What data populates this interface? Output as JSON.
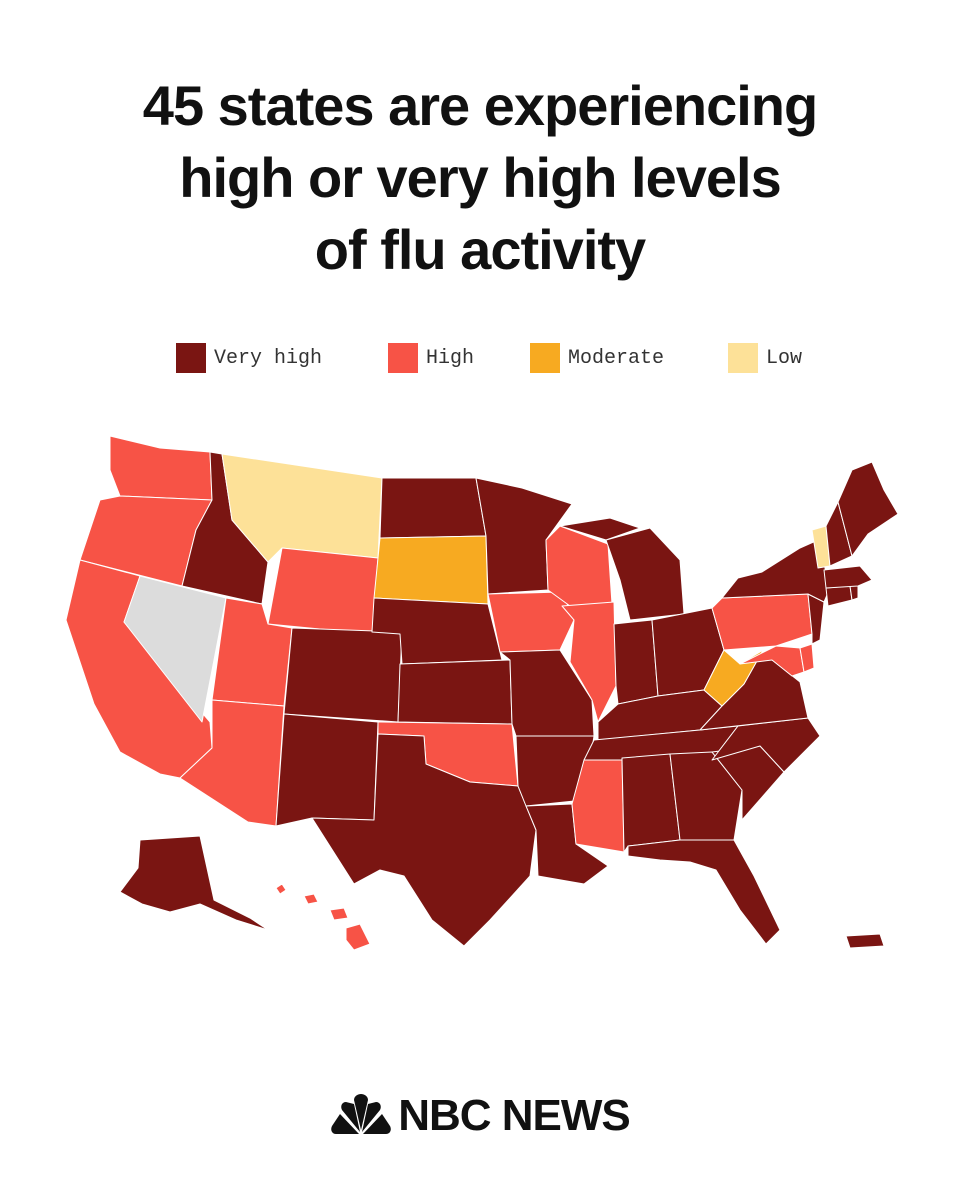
{
  "headline": {
    "line1": "45 states are experiencing",
    "line2": "high or very high levels",
    "line3": "of flu activity"
  },
  "legend": [
    {
      "key": "very_high",
      "label": "Very high",
      "color": "#7a1512"
    },
    {
      "key": "high",
      "label": "High",
      "color": "#f75346"
    },
    {
      "key": "moderate",
      "label": "Moderate",
      "color": "#f7aa21"
    },
    {
      "key": "low",
      "label": "Low",
      "color": "#fde198"
    }
  ],
  "no_data_color": "#dcdcdc",
  "map_data": {
    "states": [
      {
        "state": "WA",
        "level": "high"
      },
      {
        "state": "OR",
        "level": "high"
      },
      {
        "state": "CA",
        "level": "high"
      },
      {
        "state": "NV",
        "level": "no_data"
      },
      {
        "state": "ID",
        "level": "very_high"
      },
      {
        "state": "MT",
        "level": "low"
      },
      {
        "state": "WY",
        "level": "high"
      },
      {
        "state": "UT",
        "level": "high"
      },
      {
        "state": "AZ",
        "level": "high"
      },
      {
        "state": "CO",
        "level": "very_high"
      },
      {
        "state": "NM",
        "level": "very_high"
      },
      {
        "state": "ND",
        "level": "very_high"
      },
      {
        "state": "SD",
        "level": "moderate"
      },
      {
        "state": "NE",
        "level": "very_high"
      },
      {
        "state": "KS",
        "level": "very_high"
      },
      {
        "state": "OK",
        "level": "high"
      },
      {
        "state": "TX",
        "level": "very_high"
      },
      {
        "state": "MN",
        "level": "very_high"
      },
      {
        "state": "IA",
        "level": "high"
      },
      {
        "state": "MO",
        "level": "very_high"
      },
      {
        "state": "AR",
        "level": "very_high"
      },
      {
        "state": "LA",
        "level": "very_high"
      },
      {
        "state": "WI",
        "level": "high"
      },
      {
        "state": "IL",
        "level": "high"
      },
      {
        "state": "MS",
        "level": "high"
      },
      {
        "state": "MI",
        "level": "very_high"
      },
      {
        "state": "IN",
        "level": "very_high"
      },
      {
        "state": "OH",
        "level": "very_high"
      },
      {
        "state": "KY",
        "level": "very_high"
      },
      {
        "state": "TN",
        "level": "very_high"
      },
      {
        "state": "AL",
        "level": "very_high"
      },
      {
        "state": "GA",
        "level": "very_high"
      },
      {
        "state": "FL",
        "level": "very_high"
      },
      {
        "state": "SC",
        "level": "very_high"
      },
      {
        "state": "NC",
        "level": "very_high"
      },
      {
        "state": "VA",
        "level": "very_high"
      },
      {
        "state": "WV",
        "level": "moderate"
      },
      {
        "state": "PA",
        "level": "high"
      },
      {
        "state": "MD",
        "level": "high"
      },
      {
        "state": "DE",
        "level": "high"
      },
      {
        "state": "NJ",
        "level": "very_high"
      },
      {
        "state": "NY",
        "level": "very_high"
      },
      {
        "state": "CT",
        "level": "very_high"
      },
      {
        "state": "RI",
        "level": "very_high"
      },
      {
        "state": "MA",
        "level": "very_high"
      },
      {
        "state": "VT",
        "level": "low"
      },
      {
        "state": "NH",
        "level": "very_high"
      },
      {
        "state": "ME",
        "level": "very_high"
      },
      {
        "state": "AK",
        "level": "very_high"
      },
      {
        "state": "HI",
        "level": "high"
      },
      {
        "state": "PR",
        "level": "very_high"
      }
    ]
  },
  "footer": {
    "brand": "NBC NEWS",
    "logo_icon": "peacock-icon"
  }
}
